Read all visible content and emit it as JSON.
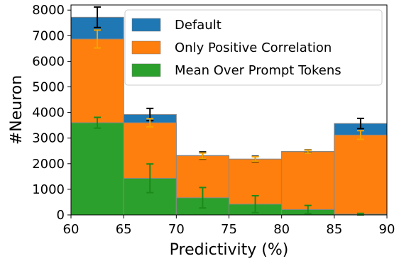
{
  "chart_data": {
    "type": "bar",
    "bins": [
      [
        60,
        65
      ],
      [
        65,
        70
      ],
      [
        70,
        75
      ],
      [
        75,
        80
      ],
      [
        80,
        85
      ],
      [
        85,
        90
      ]
    ],
    "x_ticks": [
      60,
      65,
      70,
      75,
      80,
      85,
      90
    ],
    "y_ticks": [
      0,
      1000,
      2000,
      3000,
      4000,
      5000,
      6000,
      7000,
      8000
    ],
    "xlim": [
      60,
      90
    ],
    "ylim": [
      0,
      8200
    ],
    "xlabel": "Predictivity (%)",
    "ylabel": "#Neuron",
    "legend_position": "top-right",
    "grid": false,
    "series": [
      {
        "name": "Default",
        "color": "#1f77b4",
        "errcolor": "#000000",
        "values": [
          7720,
          3920,
          2320,
          2180,
          2480,
          3570
        ],
        "errors": [
          400,
          240,
          140,
          110,
          60,
          200
        ]
      },
      {
        "name": "Only Positive Correlation",
        "color": "#ff7f0e",
        "errcolor": "#f4a300",
        "values": [
          6870,
          3600,
          2310,
          2180,
          2470,
          3120
        ],
        "errors": [
          350,
          160,
          110,
          90,
          60,
          170
        ]
      },
      {
        "name": "Mean Over Prompt Tokens",
        "color": "#2ca02c",
        "errcolor": "#1a8a1a",
        "values": [
          3600,
          1430,
          670,
          420,
          210,
          30
        ],
        "errors": [
          210,
          560,
          400,
          330,
          160,
          30
        ]
      }
    ]
  }
}
